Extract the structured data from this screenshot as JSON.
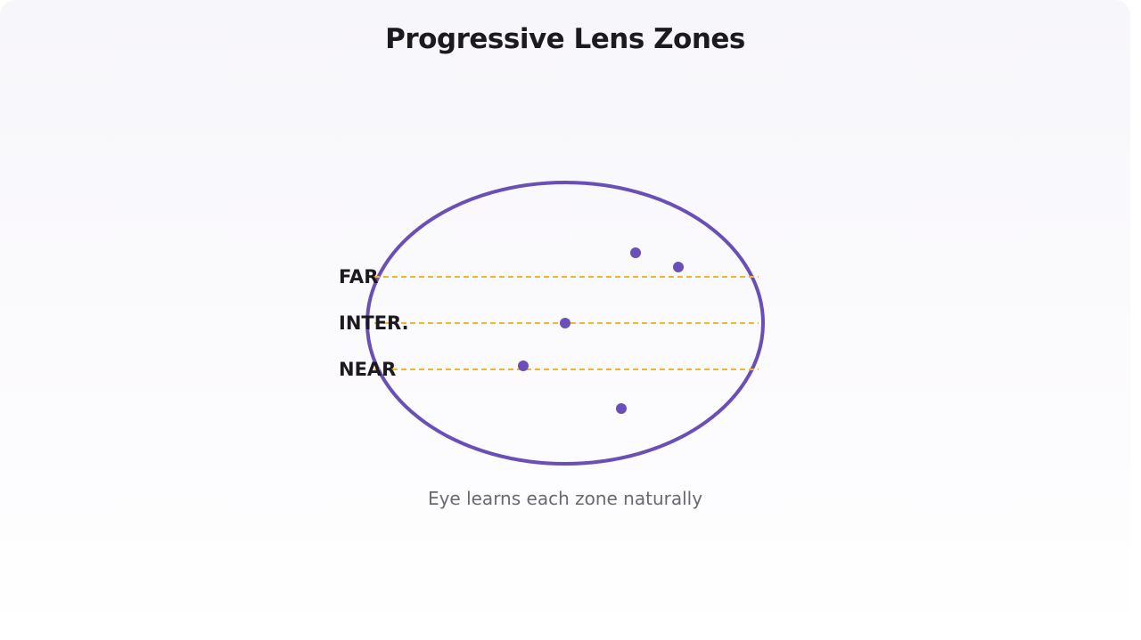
{
  "title": "Progressive Lens Zones",
  "caption": "Eye learns each zone naturally",
  "zones": [
    {
      "key": "far",
      "label": "FAR"
    },
    {
      "key": "intermediate",
      "label": "INTER."
    },
    {
      "key": "near",
      "label": "NEAR"
    }
  ],
  "colors": {
    "lens_outline": "#6a4fb8",
    "zone_line": "#f2b531",
    "dot": "#6a4fb8",
    "title": "#1c1a1f",
    "caption": "#6b6870"
  }
}
